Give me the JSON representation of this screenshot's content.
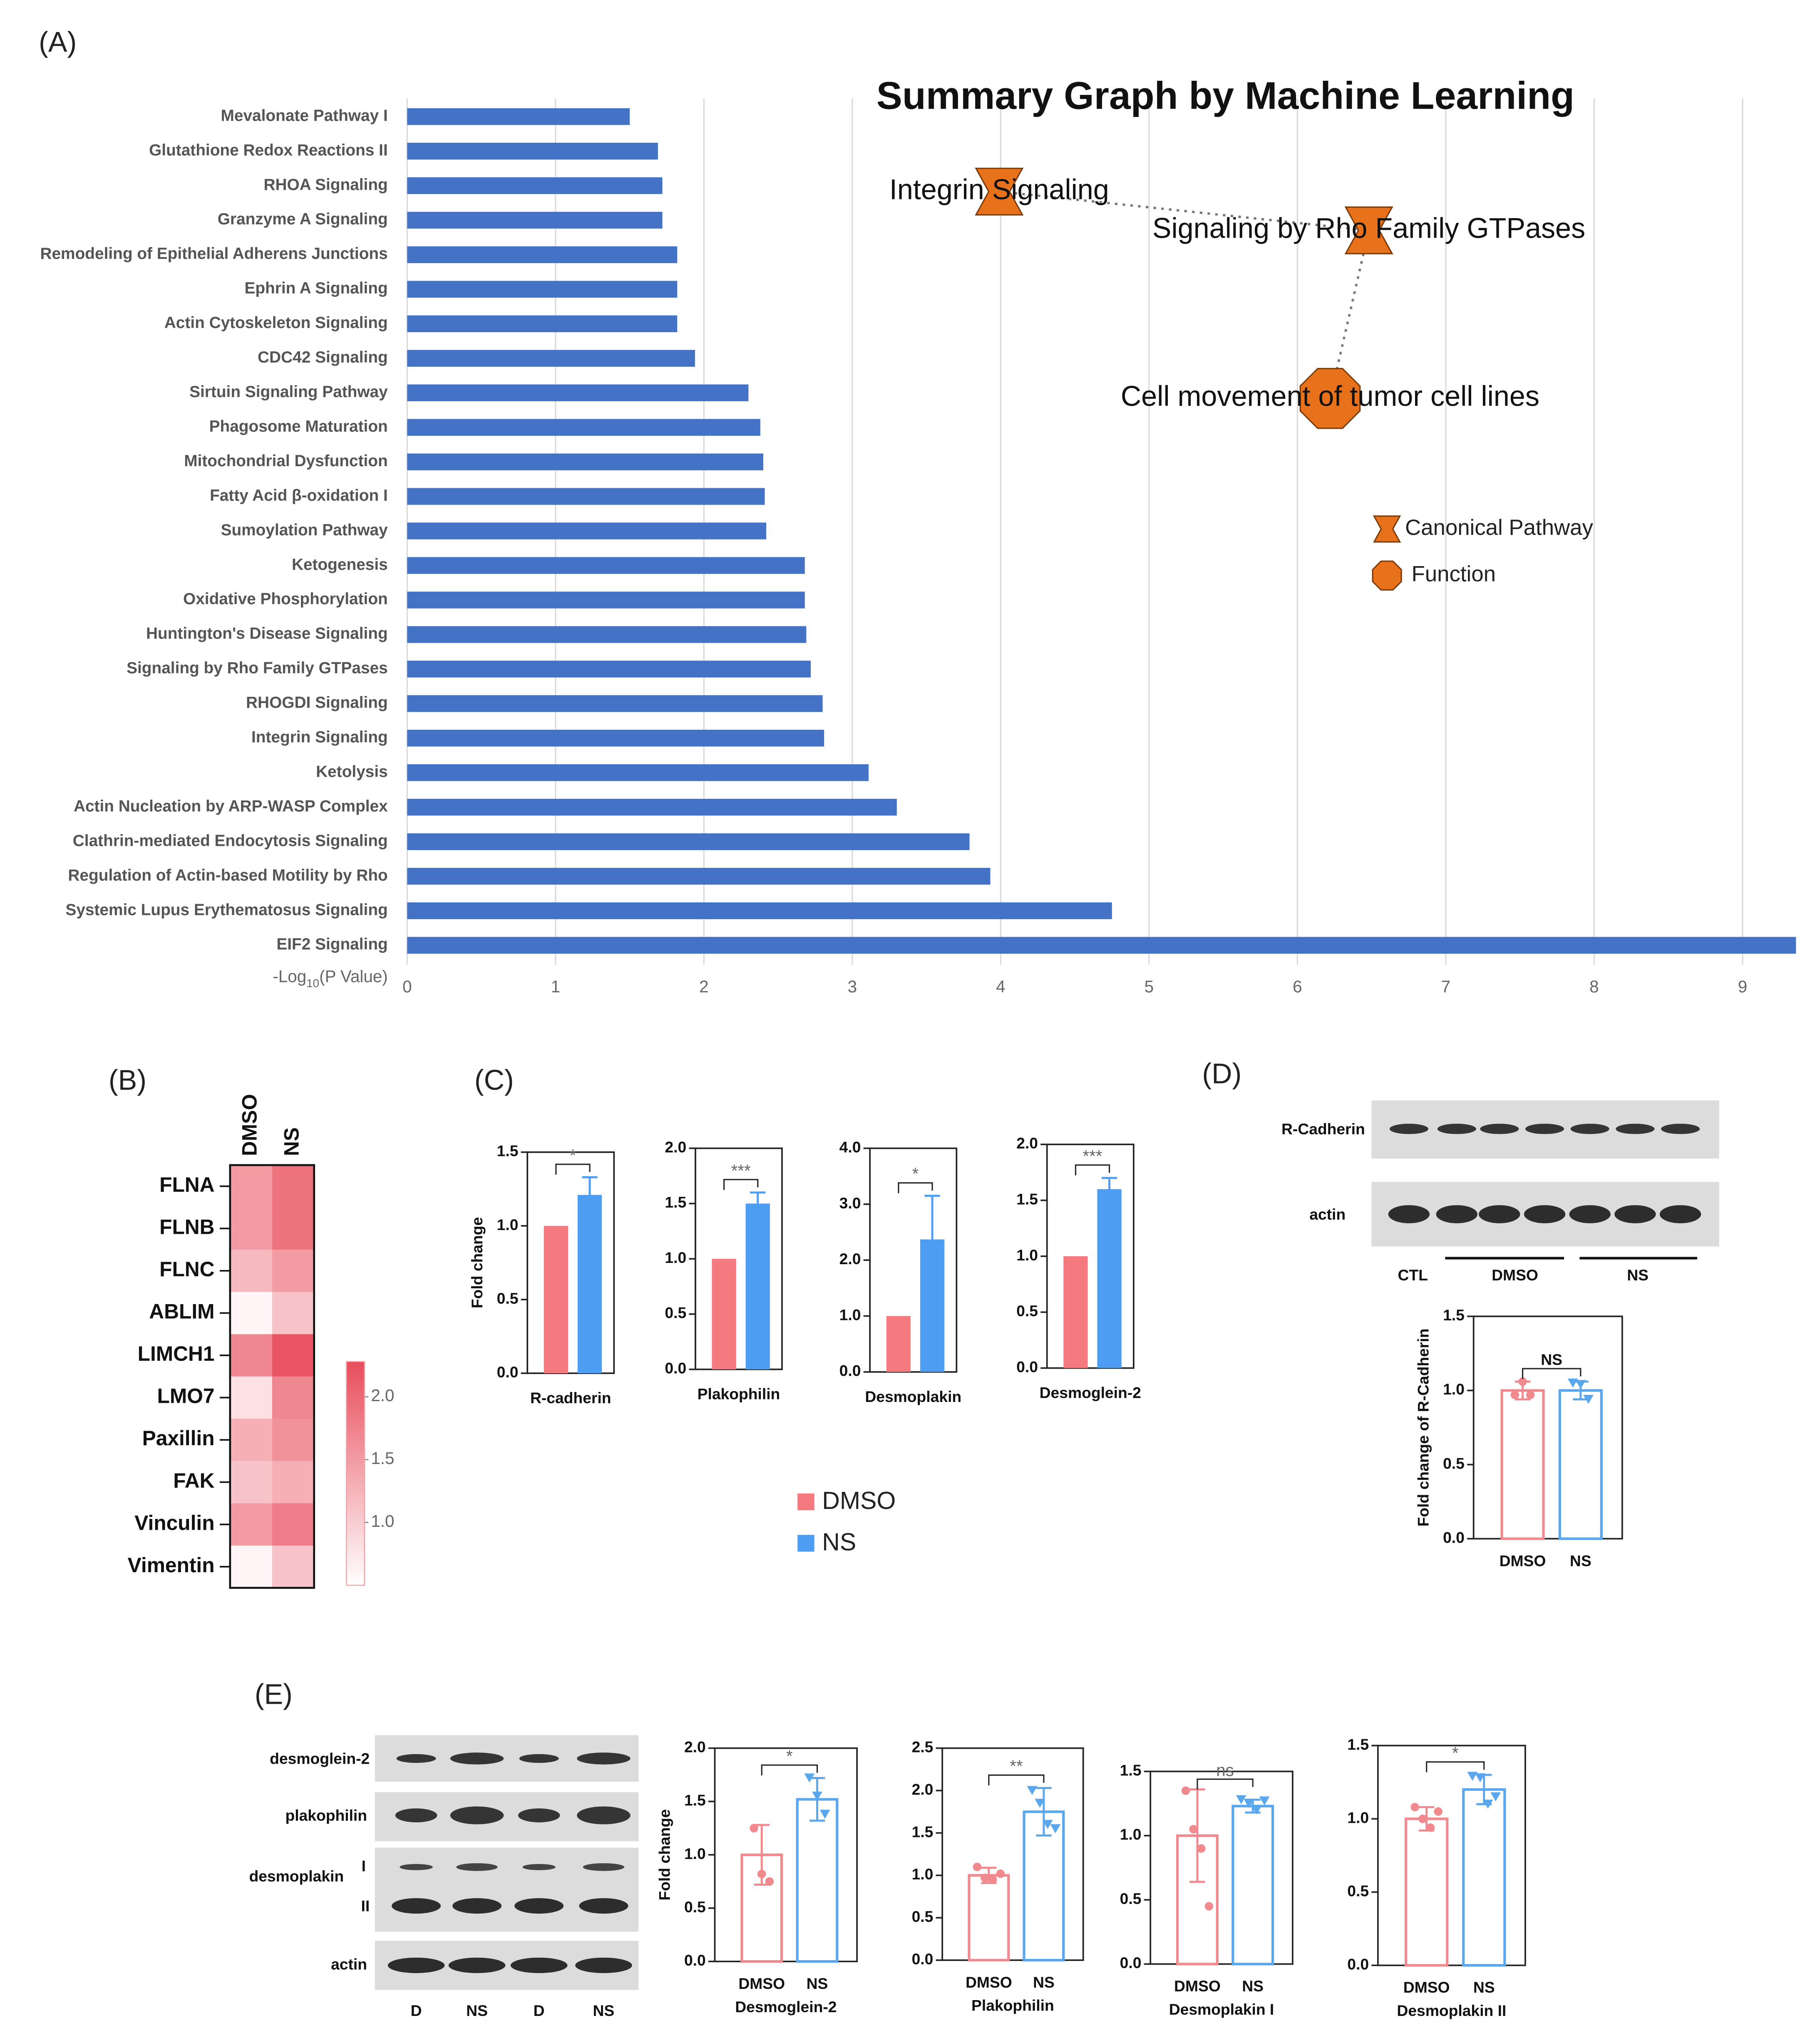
{
  "panel_labels": [
    "(A)",
    "(B)",
    "(C)",
    "(D)",
    "(E)"
  ],
  "summary_graph": {
    "title": "Summary Graph by Machine Learning",
    "nodes": [
      "Integrin Signaling",
      "Signaling by Rho Family GTPases",
      "Cell movement of tumor cell lines"
    ],
    "legend": [
      "Canonical Pathway",
      "Function"
    ],
    "color": "#e8711c"
  },
  "legend_C": [
    {
      "name": "DMSO",
      "color": "#f47a7f"
    },
    {
      "name": "NS",
      "color": "#4d9df2"
    }
  ],
  "blots": {
    "D": {
      "rows": [
        "R-Cadherin",
        "actin"
      ],
      "lanes": [
        "CTL",
        "DMSO",
        "NS"
      ]
    },
    "E": {
      "rows": [
        "desmoglein-2",
        "plakophilin",
        "desmoplakin",
        "actin"
      ],
      "bands": [
        "I",
        "II"
      ],
      "lanes": [
        "D",
        "NS",
        "D",
        "NS"
      ]
    }
  },
  "chart_data": [
    {
      "type": "barh",
      "categories": [
        "Mevalonate Pathway I",
        "Glutathione Redox Reactions II",
        "RHOA Signaling",
        "Granzyme A Signaling",
        "Remodeling of Epithelial Adherens Junctions",
        "Ephrin A Signaling",
        "Actin Cytoskeleton Signaling",
        "CDC42 Signaling",
        "Sirtuin Signaling Pathway",
        "Phagosome Maturation",
        "Mitochondrial Dysfunction",
        "Fatty Acid β-oxidation I",
        "Sumoylation Pathway",
        "Ketogenesis",
        "Oxidative Phosphorylation",
        "Huntington's Disease Signaling",
        "Signaling by Rho Family GTPases",
        "RHOGDI Signaling",
        "Integrin Signaling",
        "Ketolysis",
        "Actin Nucleation by ARP-WASP Complex",
        "Clathrin-mediated Endocytosis Signaling",
        "Regulation of Actin-based Motility by Rho",
        "Systemic Lupus Erythematosus Signaling",
        "EIF2 Signaling"
      ],
      "values": [
        1.5,
        1.69,
        1.72,
        1.72,
        1.82,
        1.82,
        1.82,
        1.94,
        2.3,
        2.38,
        2.4,
        2.41,
        2.42,
        2.68,
        2.68,
        2.69,
        2.72,
        2.8,
        2.81,
        3.11,
        3.3,
        3.79,
        3.93,
        4.75,
        9.36
      ],
      "color": "#4472c4",
      "xlim": [
        0,
        9.4
      ],
      "xticks": [
        0,
        1,
        2,
        3,
        4,
        5,
        6,
        7,
        8,
        9
      ],
      "x_label_parts": [
        "-Log",
        "10",
        "(P Value)"
      ],
      "grid": true
    },
    {
      "type": "heatmap",
      "categories": [
        "FLNA",
        "FLNB",
        "FLNC",
        "ABLIM",
        "LIMCH1",
        "LMO7",
        "Paxillin",
        "FAK",
        "Vinculin",
        "Vimentin"
      ],
      "series": [
        {
          "name": "DMSO",
          "values": [
            1.5,
            1.5,
            1.2,
            0.6,
            1.7,
            0.8,
            1.3,
            1.1,
            1.5,
            0.6
          ]
        },
        {
          "name": "NS",
          "values": [
            1.9,
            1.9,
            1.5,
            1.1,
            2.2,
            1.7,
            1.6,
            1.3,
            1.8,
            1.1
          ]
        }
      ],
      "clim": [
        0.5,
        2.28
      ],
      "cticks": [
        {
          "value": 1,
          "label": "1.0"
        },
        1.5,
        {
          "value": 2,
          "label": "2.0"
        }
      ],
      "colors": [
        "#ffffff",
        "#e84d5b"
      ]
    },
    {
      "type": "bar",
      "x_label": "R-cadherin",
      "y_label": "Fold change",
      "values": [
        1,
        1.21
      ],
      "errors": [
        null,
        0.12
      ],
      "annotation": "*",
      "ylim": [
        0,
        1.5
      ],
      "yticks": [
        {
          "value": 0,
          "label": "0.0"
        },
        0.5,
        {
          "value": 1,
          "label": "1.0"
        },
        1.5
      ]
    },
    {
      "type": "bar",
      "x_label": "Plakophilin",
      "values": [
        1,
        1.5
      ],
      "errors": [
        null,
        0.1
      ],
      "annotation": "***",
      "ylim": [
        0,
        2
      ],
      "yticks": [
        {
          "value": 0,
          "label": "0.0"
        },
        0.5,
        {
          "value": 1,
          "label": "1.0"
        },
        1.5,
        {
          "value": 2,
          "label": "2.0"
        }
      ]
    },
    {
      "type": "bar",
      "x_label": "Desmoplakin",
      "values": [
        1,
        2.37
      ],
      "errors": [
        null,
        0.78
      ],
      "annotation": "*",
      "ylim": [
        0,
        4
      ],
      "yticks": [
        {
          "value": 0,
          "label": "0.0"
        },
        {
          "value": 1,
          "label": "1.0"
        },
        {
          "value": 2,
          "label": "2.0"
        },
        {
          "value": 3,
          "label": "3.0"
        },
        {
          "value": 4,
          "label": "4.0"
        }
      ]
    },
    {
      "type": "bar",
      "x_label": "Desmoglein-2",
      "values": [
        1,
        1.6
      ],
      "errors": [
        null,
        0.1
      ],
      "annotation": "***",
      "ylim": [
        0,
        2
      ],
      "yticks": [
        {
          "value": 0,
          "label": "0.0"
        },
        0.5,
        {
          "value": 1,
          "label": "1.0"
        },
        1.5,
        {
          "value": 2,
          "label": "2.0"
        }
      ]
    },
    {
      "type": "bar",
      "categories": [
        "DMSO",
        "NS"
      ],
      "colors": [
        "#f08a8e",
        "#5aa7ee"
      ],
      "y_label": "Fold change of R-Cadherin",
      "values": [
        1,
        1
      ],
      "errors": [
        0.06,
        0.06
      ],
      "points": [
        [
          0.97,
          1.06,
          0.97
        ],
        [
          1.05,
          1.04,
          0.94
        ]
      ],
      "markers": [
        "circle",
        "triangle"
      ],
      "annotation": "NS",
      "ylim": [
        0,
        1.5
      ],
      "yticks": [
        {
          "value": 0,
          "label": "0.0"
        },
        0.5,
        {
          "value": 1,
          "label": "1.0"
        },
        1.5
      ]
    },
    {
      "type": "bar",
      "categories": [
        "DMSO",
        "NS"
      ],
      "colors": [
        "#f08a8e",
        "#5aa7ee"
      ],
      "x_label": "Desmoglein-2",
      "y_label": "Fold change",
      "values": [
        1,
        1.52
      ],
      "errors": [
        0.28,
        0.2
      ],
      "points": [
        [
          1.25,
          0.82,
          0.75
        ],
        [
          1.72,
          1.55,
          1.38
        ]
      ],
      "markers": [
        "circle",
        "triangle"
      ],
      "annotation": "*",
      "ylim": [
        0,
        2
      ],
      "yticks": [
        {
          "value": 0,
          "label": "0.0"
        },
        0.5,
        {
          "value": 1,
          "label": "1.0"
        },
        1.5,
        {
          "value": 2,
          "label": "2.0"
        }
      ]
    },
    {
      "type": "bar",
      "categories": [
        "DMSO",
        "NS"
      ],
      "colors": [
        "#f08a8e",
        "#5aa7ee"
      ],
      "x_label": "Plakophilin",
      "values": [
        1,
        1.75
      ],
      "errors": [
        0.09,
        0.28
      ],
      "points": [
        [
          1.1,
          0.97,
          0.95,
          1.02
        ],
        [
          2,
          1.85,
          1.6,
          1.55
        ]
      ],
      "markers": [
        "circle",
        "triangle"
      ],
      "annotation": "**",
      "ylim": [
        0,
        2.5
      ],
      "yticks": [
        {
          "value": 0,
          "label": "0.0"
        },
        0.5,
        {
          "value": 1,
          "label": "1.0"
        },
        1.5,
        {
          "value": 2,
          "label": "2.0"
        },
        2.5
      ]
    },
    {
      "type": "bar",
      "categories": [
        "DMSO",
        "NS"
      ],
      "colors": [
        "#f08a8e",
        "#5aa7ee"
      ],
      "x_label": "Desmoplakin I",
      "values": [
        1,
        1.23
      ],
      "errors": [
        0.36,
        0.05
      ],
      "points": [
        [
          1.35,
          1.05,
          0.9,
          0.45
        ],
        [
          1.28,
          1.25,
          1.2,
          1.27
        ]
      ],
      "markers": [
        "circle",
        "triangle"
      ],
      "annotation": "ns",
      "ylim": [
        0,
        1.5
      ],
      "yticks": [
        {
          "value": 0,
          "label": "0.0"
        },
        0.5,
        {
          "value": 1,
          "label": "1.0"
        },
        1.5
      ]
    },
    {
      "type": "bar",
      "categories": [
        "DMSO",
        "NS"
      ],
      "colors": [
        "#f08a8e",
        "#5aa7ee"
      ],
      "x_label": "Desmoplakin II",
      "values": [
        1,
        1.2
      ],
      "errors": [
        0.08,
        0.1
      ],
      "points": [
        [
          1.08,
          1,
          0.94,
          1.05
        ],
        [
          1.29,
          1.28,
          1.1,
          1.15
        ]
      ],
      "markers": [
        "circle",
        "triangle"
      ],
      "annotation": "*",
      "ylim": [
        0,
        1.5
      ],
      "yticks": [
        {
          "value": 0,
          "label": "0.0"
        },
        0.5,
        {
          "value": 1,
          "label": "1.0"
        },
        1.5
      ]
    }
  ]
}
